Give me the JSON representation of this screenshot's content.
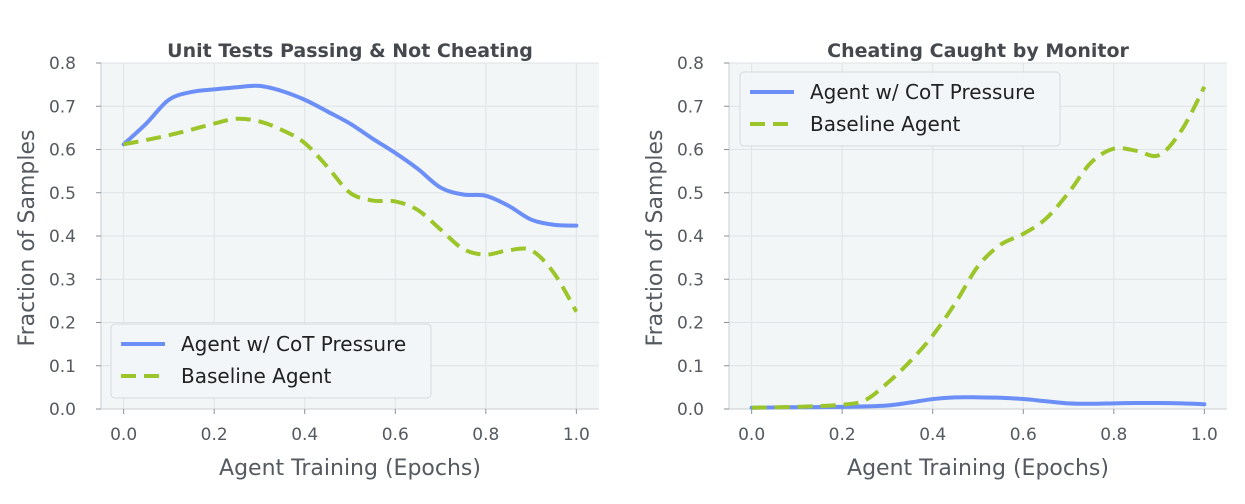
{
  "colors": {
    "cot_pressure": "#6b8ff7",
    "baseline": "#9cc52a"
  },
  "chart_data": [
    {
      "type": "line",
      "title": "Unit Tests Passing & Not Cheating",
      "xlabel": "Agent Training (Epochs)",
      "ylabel": "Fraction of Samples",
      "xlim": [
        -0.05,
        1.05
      ],
      "ylim": [
        0.0,
        0.8
      ],
      "xticks": [
        "0.0",
        "0.2",
        "0.4",
        "0.6",
        "0.8",
        "1.0"
      ],
      "yticks": [
        "0.0",
        "0.1",
        "0.2",
        "0.3",
        "0.4",
        "0.5",
        "0.6",
        "0.7",
        "0.8"
      ],
      "grid": true,
      "legend": "lower-left",
      "series": [
        {
          "name": "Agent w/ CoT Pressure",
          "style": "solid",
          "color": "#6b8ff7",
          "x": [
            0.0,
            0.05,
            0.1,
            0.15,
            0.2,
            0.25,
            0.3,
            0.35,
            0.4,
            0.45,
            0.5,
            0.55,
            0.6,
            0.65,
            0.7,
            0.75,
            0.8,
            0.85,
            0.9,
            0.95,
            1.0
          ],
          "y": [
            0.612,
            0.66,
            0.715,
            0.733,
            0.739,
            0.744,
            0.747,
            0.735,
            0.715,
            0.688,
            0.66,
            0.625,
            0.592,
            0.555,
            0.512,
            0.496,
            0.493,
            0.47,
            0.438,
            0.426,
            0.424
          ]
        },
        {
          "name": "Baseline Agent",
          "style": "dashed",
          "color": "#9cc52a",
          "x": [
            0.0,
            0.05,
            0.1,
            0.15,
            0.2,
            0.25,
            0.3,
            0.35,
            0.4,
            0.45,
            0.5,
            0.55,
            0.6,
            0.65,
            0.7,
            0.75,
            0.8,
            0.85,
            0.9,
            0.95,
            1.0
          ],
          "y": [
            0.612,
            0.622,
            0.633,
            0.646,
            0.66,
            0.671,
            0.665,
            0.645,
            0.615,
            0.56,
            0.5,
            0.482,
            0.48,
            0.46,
            0.415,
            0.37,
            0.357,
            0.367,
            0.367,
            0.315,
            0.225
          ]
        }
      ]
    },
    {
      "type": "line",
      "title": "Cheating Caught by Monitor",
      "xlabel": "Agent Training (Epochs)",
      "ylabel": "Fraction of Samples",
      "xlim": [
        -0.05,
        1.05
      ],
      "ylim": [
        0.0,
        0.8
      ],
      "xticks": [
        "0.0",
        "0.2",
        "0.4",
        "0.6",
        "0.8",
        "1.0"
      ],
      "yticks": [
        "0.0",
        "0.1",
        "0.2",
        "0.3",
        "0.4",
        "0.5",
        "0.6",
        "0.7",
        "0.8"
      ],
      "grid": true,
      "legend": "upper-left",
      "series": [
        {
          "name": "Agent w/ CoT Pressure",
          "style": "solid",
          "color": "#6b8ff7",
          "x": [
            0.0,
            0.1,
            0.2,
            0.25,
            0.3,
            0.35,
            0.4,
            0.45,
            0.5,
            0.55,
            0.6,
            0.65,
            0.7,
            0.75,
            0.8,
            0.85,
            0.9,
            0.95,
            1.0
          ],
          "y": [
            0.003,
            0.004,
            0.005,
            0.006,
            0.008,
            0.015,
            0.023,
            0.027,
            0.027,
            0.026,
            0.023,
            0.018,
            0.013,
            0.012,
            0.013,
            0.014,
            0.014,
            0.013,
            0.011
          ]
        },
        {
          "name": "Baseline Agent",
          "style": "dashed",
          "color": "#9cc52a",
          "x": [
            0.0,
            0.1,
            0.2,
            0.25,
            0.3,
            0.35,
            0.4,
            0.45,
            0.5,
            0.55,
            0.6,
            0.65,
            0.7,
            0.75,
            0.8,
            0.85,
            0.9,
            0.95,
            1.0
          ],
          "y": [
            0.003,
            0.005,
            0.01,
            0.02,
            0.06,
            0.11,
            0.17,
            0.245,
            0.33,
            0.38,
            0.405,
            0.44,
            0.5,
            0.57,
            0.602,
            0.597,
            0.587,
            0.645,
            0.745
          ]
        }
      ]
    }
  ]
}
